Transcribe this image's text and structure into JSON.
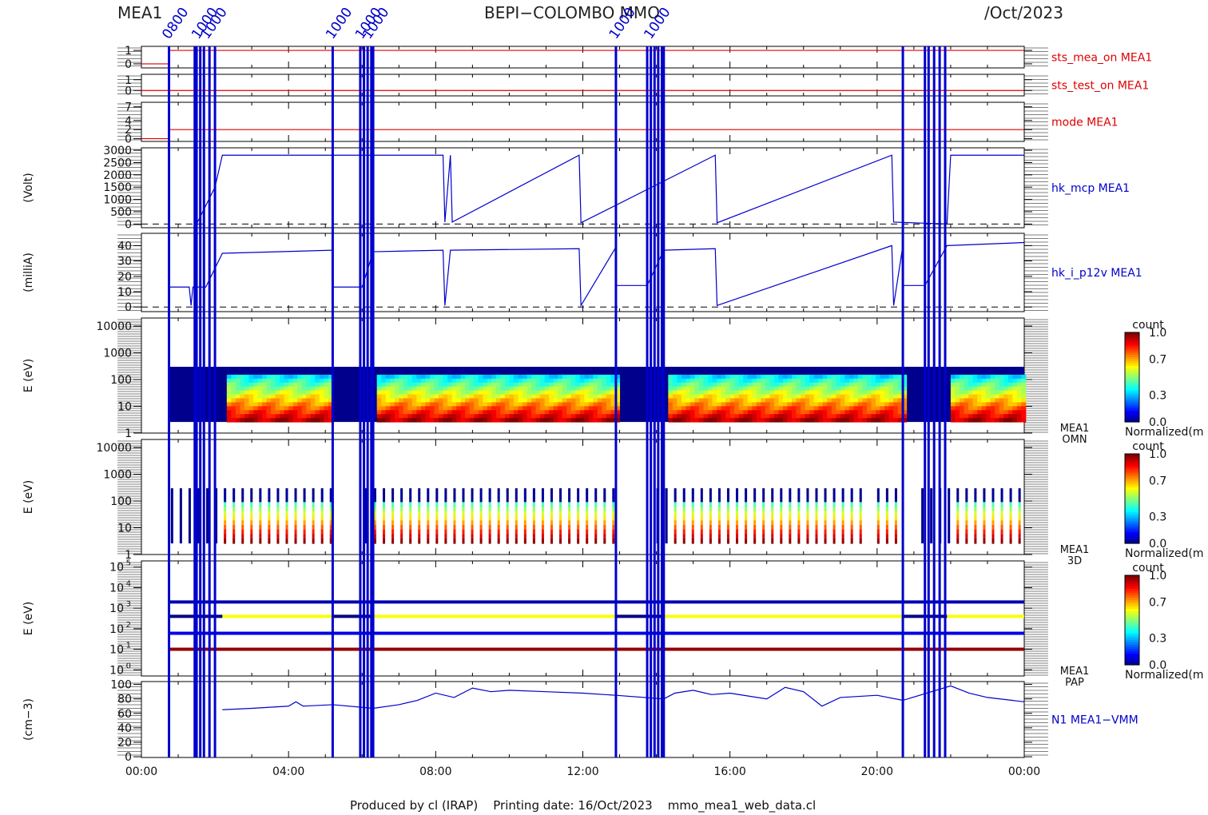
{
  "header": {
    "left": "MEA1",
    "center": "BEPI−COLOMBO MMO",
    "right": "/Oct/2023"
  },
  "footer": "Produced by cl (IRAP)    Printing date: 16/Oct/2023    mmo_mea1_web_data.cl",
  "colors": {
    "red": "#e00000",
    "blue": "#0000cc",
    "navy": "#00008c"
  },
  "chart_data": [
    {
      "type": "line",
      "label": "sts_mea_on MEA1",
      "ytick_labels": [
        "1",
        "0"
      ],
      "yticks": [
        1,
        0
      ],
      "ylim": [
        -0.3,
        1.3
      ],
      "color": "#e00000",
      "series": [
        {
          "x": [
            0,
            0.75,
            0.75,
            24
          ],
          "values": [
            0,
            0,
            1,
            1
          ]
        }
      ]
    },
    {
      "type": "line",
      "label": "sts_test_on MEA1",
      "ytick_labels": [
        "1",
        "0"
      ],
      "yticks": [
        1,
        0
      ],
      "ylim": [
        -0.5,
        1.5
      ],
      "color": "#e00000",
      "series": [
        {
          "x": [
            0,
            24
          ],
          "values": [
            0,
            0
          ]
        }
      ]
    },
    {
      "type": "line",
      "label": "mode MEA1",
      "ytick_labels": [
        "7",
        "4",
        "2",
        "0"
      ],
      "yticks": [
        7,
        4,
        2,
        0
      ],
      "ylim": [
        -0.6,
        8
      ],
      "color": "#e00000",
      "series": [
        {
          "x": [
            0,
            0.75,
            0.75,
            24
          ],
          "values": [
            0,
            0,
            2,
            2
          ]
        }
      ]
    },
    {
      "type": "line",
      "label": "hk_mcp MEA1",
      "ylabel": "(Volt)",
      "ytick_labels": [
        "3000",
        "2500",
        "2000",
        "1500",
        "1000",
        "500",
        "0"
      ],
      "yticks": [
        3000,
        2500,
        2000,
        1500,
        1000,
        500,
        0
      ],
      "ylim": [
        -150,
        3100
      ],
      "color": "#0000cc",
      "series": [
        {
          "x": [
            1.5,
            2.0,
            2.2,
            8.2,
            8.25,
            8.4,
            8.45,
            11.9,
            11.95,
            15.6,
            15.65,
            20.4,
            20.45,
            21.9,
            22.0,
            24
          ],
          "values": [
            0,
            1500,
            2800,
            2800,
            80,
            2800,
            80,
            2800,
            50,
            2800,
            50,
            2800,
            80,
            0,
            2800,
            2800
          ]
        }
      ]
    },
    {
      "type": "line",
      "label": "hk_i_p12v MEA1",
      "ylabel": "(milliA)",
      "ytick_labels": [
        "40",
        "30",
        "20",
        "10",
        "0"
      ],
      "yticks": [
        40,
        30,
        20,
        10,
        0
      ],
      "ylim": [
        -3,
        48
      ],
      "color": "#0000cc",
      "series": [
        {
          "x": [
            0.75,
            1.3,
            1.35,
            1.4,
            1.75,
            2.2,
            5.2,
            5.2,
            6.0,
            6.3,
            8.2,
            8.25,
            8.4,
            11.9,
            11.95,
            12.9,
            12.9,
            13.75,
            14.2,
            15.6,
            15.65,
            20.4,
            20.45,
            20.7,
            20.7,
            21.3,
            21.9,
            24
          ],
          "values": [
            13,
            13,
            1,
            13,
            13,
            35,
            37,
            13,
            13,
            36,
            37,
            1,
            37,
            38,
            1,
            39,
            14,
            14,
            37,
            38,
            1,
            40,
            1,
            40,
            14,
            14,
            40,
            42
          ]
        }
      ]
    },
    {
      "type": "heatmap",
      "label": "MEA1 OMN",
      "ylabel": "E (eV)",
      "ytick_labels": [
        "10000",
        "1000",
        "100",
        "10",
        "1"
      ],
      "yticks": [
        10000,
        1000,
        100,
        10,
        1
      ],
      "ylim": [
        1,
        20000
      ],
      "colorbar_title": "count",
      "colorbar_ticks": [
        "1.0",
        "0.7",
        "0.3",
        "0.0"
      ],
      "colorbar_label": "Normalized(m"
    },
    {
      "type": "heatmap",
      "label": "MEA1 3D",
      "ylabel": "E (eV)",
      "ytick_labels": [
        "10000",
        "1000",
        "100",
        "10",
        "1"
      ],
      "yticks": [
        10000,
        1000,
        100,
        10,
        1
      ],
      "ylim": [
        1,
        20000
      ],
      "colorbar_title": "count",
      "colorbar_ticks": [
        "1.0",
        "0.7",
        "0.3",
        "0.0"
      ],
      "colorbar_label": "Normalized(m"
    },
    {
      "type": "heatmap",
      "label": "MEA1 PAP",
      "ylabel": "E (eV)",
      "ytick_labels": [
        "10",
        "10",
        "10",
        "10",
        "10",
        "10"
      ],
      "ytick_exponents": [
        "5",
        "4",
        "3",
        "2",
        "1",
        "0"
      ],
      "yticks": [
        100000,
        10000,
        1000,
        100,
        10,
        1
      ],
      "ylim": [
        0.5,
        200000
      ],
      "colorbar_title": "count",
      "colorbar_ticks": [
        "1.0",
        "0.7",
        "0.3",
        "0.0"
      ],
      "colorbar_label": "Normalized(m"
    },
    {
      "type": "line",
      "label": "N1 MEA1−VMM",
      "ylabel": "(cm−3)",
      "ytick_labels": [
        "100",
        "80",
        "60",
        "40",
        "20",
        "0"
      ],
      "yticks": [
        100,
        80,
        60,
        40,
        20,
        0
      ],
      "ylim": [
        -1,
        104
      ],
      "color": "#0000cc",
      "series": [
        {
          "x": [
            2.2,
            3.0,
            4.0,
            4.2,
            4.4,
            5.2,
            6.3,
            7.0,
            7.5,
            8.0,
            8.5,
            9.0,
            9.5,
            10.0,
            11.0,
            12.0,
            12.9,
            14.2,
            14.5,
            15.0,
            15.5,
            16.0,
            17.0,
            17.5,
            18.0,
            18.5,
            19.0,
            20.0,
            20.7,
            22.0,
            22.5,
            23.0,
            24.0
          ],
          "values": [
            65,
            67,
            70,
            76,
            70,
            72,
            67,
            72,
            78,
            88,
            82,
            95,
            90,
            92,
            90,
            88,
            85,
            80,
            88,
            92,
            86,
            88,
            80,
            96,
            90,
            70,
            82,
            85,
            78,
            98,
            88,
            82,
            76
          ]
        }
      ]
    }
  ],
  "spectra_bands": {
    "OMN": [
      {
        "from": 0.75,
        "to": 24
      }
    ],
    "3D": [
      {
        "from": 0.75,
        "to": 24
      }
    ],
    "PAP_lines_eV": [
      2000,
      400,
      60,
      10
    ]
  },
  "data_gaps_hours": [
    [
      1.4,
      2.2
    ],
    [
      5.2,
      5.2
    ],
    [
      6.0,
      6.3
    ],
    [
      12.9,
      12.9
    ],
    [
      13.75,
      14.2
    ],
    [
      20.7,
      20.7
    ],
    [
      21.3,
      21.9
    ]
  ],
  "top_labels": [
    "0800",
    "1000",
    "1000",
    "1000",
    "1000",
    "1000",
    "1000",
    "1000"
  ],
  "x_axis": {
    "tick_labels": [
      "00:00",
      "04:00",
      "08:00",
      "12:00",
      "16:00",
      "20:00",
      "00:00"
    ],
    "xlim": [
      0,
      24
    ]
  }
}
